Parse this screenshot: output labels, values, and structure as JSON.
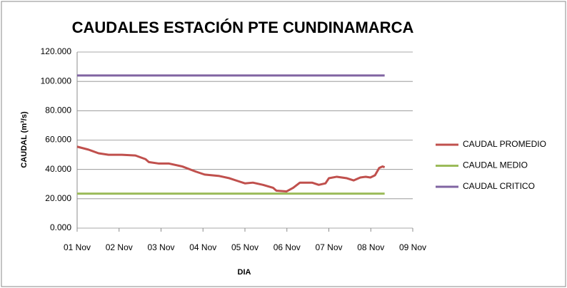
{
  "chart_data": {
    "type": "line",
    "title": "CAUDALES  ESTACIÓN PTE CUNDINAMARCA",
    "x_label": "DIA",
    "y_label": "CAUDAL  (m³/s)",
    "xlim": [
      0,
      8
    ],
    "xticks": [
      {
        "value": 0,
        "label": "01 Nov"
      },
      {
        "value": 1,
        "label": "02 Nov"
      },
      {
        "value": 2,
        "label": "03 Nov"
      },
      {
        "value": 3,
        "label": "04 Nov"
      },
      {
        "value": 4,
        "label": "05 Nov"
      },
      {
        "value": 5,
        "label": "06 Nov"
      },
      {
        "value": 6,
        "label": "07 Nov"
      },
      {
        "value": 7,
        "label": "08 Nov"
      },
      {
        "value": 8,
        "label": "09 Nov"
      }
    ],
    "ylim": [
      0,
      120
    ],
    "yticks": [
      {
        "value": 0,
        "label": "0.000"
      },
      {
        "value": 20,
        "label": "20.000"
      },
      {
        "value": 40,
        "label": "40.000"
      },
      {
        "value": 60,
        "label": "60.000"
      },
      {
        "value": 80,
        "label": "80.000"
      },
      {
        "value": 100,
        "label": "100.000"
      },
      {
        "value": 120,
        "label": "120.000"
      }
    ],
    "grid": true,
    "legend": "right",
    "series": [
      {
        "name": "CAUDAL PROMEDIO",
        "color": "#c0504d",
        "x": [
          0,
          0.27,
          0.51,
          0.75,
          1.07,
          1.39,
          1.63,
          1.71,
          1.95,
          2.19,
          2.51,
          2.83,
          3.04,
          3.39,
          3.63,
          3.84,
          4.0,
          4.19,
          4.43,
          4.67,
          4.75,
          4.99,
          5.15,
          5.31,
          5.6,
          5.76,
          5.92,
          6.0,
          6.19,
          6.43,
          6.59,
          6.75,
          6.88,
          6.99,
          7.1,
          7.2,
          7.28,
          7.33
        ],
        "values": [
          55.5,
          53.5,
          51,
          50,
          50,
          49.5,
          47,
          45,
          44,
          44,
          42,
          38.5,
          36.5,
          35.5,
          34,
          32,
          30.5,
          31,
          29.5,
          27.5,
          25.5,
          25,
          27.5,
          31,
          31,
          29.5,
          30.5,
          34,
          35,
          34,
          32.5,
          34.5,
          35,
          34.5,
          36,
          41,
          42,
          41.5
        ]
      },
      {
        "name": "CAUDAL MEDIO",
        "color": "#9bbb59",
        "x": [
          0,
          7.33
        ],
        "values": [
          23.5,
          23.5
        ]
      },
      {
        "name": "CAUDAL CRITICO",
        "color": "#8064a2",
        "x": [
          0,
          7.33
        ],
        "values": [
          104,
          104
        ]
      }
    ]
  }
}
